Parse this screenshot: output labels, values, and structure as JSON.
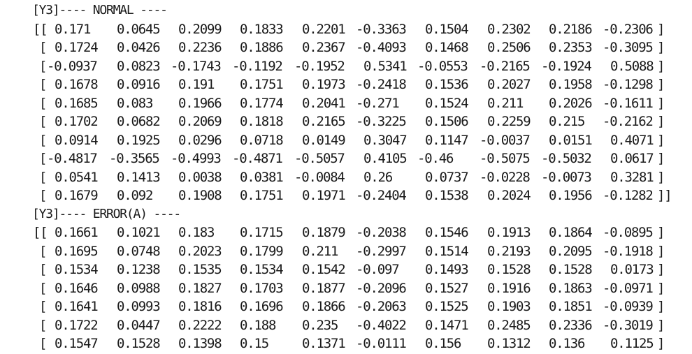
{
  "sections": [
    {
      "header": "[Y3]---- NORMAL ----",
      "rows": [
        [
          "0.171",
          "0.0645",
          "0.2099",
          "0.1833",
          "0.2201",
          "-0.3363",
          "0.1504",
          "0.2302",
          "0.2186",
          "-0.2306"
        ],
        [
          "0.1724",
          "0.0426",
          "0.2236",
          "0.1886",
          "0.2367",
          "-0.4093",
          "0.1468",
          "0.2506",
          "0.2353",
          "-0.3095"
        ],
        [
          "-0.0937",
          "0.0823",
          "-0.1743",
          "-0.1192",
          "-0.1952",
          "0.5341",
          "-0.0553",
          "-0.2165",
          "-0.1924",
          "0.5088"
        ],
        [
          "0.1678",
          "0.0916",
          "0.191",
          "0.1751",
          "0.1973",
          "-0.2418",
          "0.1536",
          "0.2027",
          "0.1958",
          "-0.1298"
        ],
        [
          "0.1685",
          "0.083",
          "0.1966",
          "0.1774",
          "0.2041",
          "-0.271",
          "0.1524",
          "0.211",
          "0.2026",
          "-0.1611"
        ],
        [
          "0.1702",
          "0.0682",
          "0.2069",
          "0.1818",
          "0.2165",
          "-0.3225",
          "0.1506",
          "0.2259",
          "0.215",
          "-0.2162"
        ],
        [
          "0.0914",
          "0.1925",
          "0.0296",
          "0.0718",
          "0.0149",
          "0.3047",
          "0.1147",
          "-0.0037",
          "0.0151",
          "0.4071"
        ],
        [
          "-0.4817",
          "-0.3565",
          "-0.4993",
          "-0.4871",
          "-0.5057",
          "0.4105",
          "-0.46",
          "-0.5075",
          "-0.5032",
          "0.0617"
        ],
        [
          "0.0541",
          "0.1413",
          "0.0038",
          "0.0381",
          "-0.0084",
          "0.26",
          "0.0737",
          "-0.0228",
          "-0.0073",
          "0.3281"
        ],
        [
          "0.1679",
          "0.092",
          "0.1908",
          "0.1751",
          "0.1971",
          "-0.2404",
          "0.1538",
          "0.2024",
          "0.1956",
          "-0.1282"
        ]
      ],
      "complete": true
    },
    {
      "header": "[Y3]---- ERROR(A) ----",
      "rows": [
        [
          "0.1661",
          "0.1021",
          "0.183",
          "0.1715",
          "0.1879",
          "-0.2038",
          "0.1546",
          "0.1913",
          "0.1864",
          "-0.0895"
        ],
        [
          "0.1695",
          "0.0748",
          "0.2023",
          "0.1799",
          "0.211",
          "-0.2997",
          "0.1514",
          "0.2193",
          "0.2095",
          "-0.1918"
        ],
        [
          "0.1534",
          "0.1238",
          "0.1535",
          "0.1534",
          "0.1542",
          "-0.097",
          "0.1493",
          "0.1528",
          "0.1528",
          "0.0173"
        ],
        [
          "0.1646",
          "0.0988",
          "0.1827",
          "0.1703",
          "0.1877",
          "-0.2096",
          "0.1527",
          "0.1916",
          "0.1863",
          "-0.0971"
        ],
        [
          "0.1641",
          "0.0993",
          "0.1816",
          "0.1696",
          "0.1866",
          "-0.2063",
          "0.1525",
          "0.1903",
          "0.1851",
          "-0.0939"
        ],
        [
          "0.1722",
          "0.0447",
          "0.2222",
          "0.188",
          "0.235",
          "-0.4022",
          "0.1471",
          "0.2485",
          "0.2336",
          "-0.3019"
        ],
        [
          "0.1547",
          "0.1528",
          "0.1398",
          "0.15",
          "0.1371",
          "-0.0111",
          "0.156",
          "0.1312",
          "0.136",
          "0.1125"
        ]
      ],
      "complete": false
    }
  ]
}
